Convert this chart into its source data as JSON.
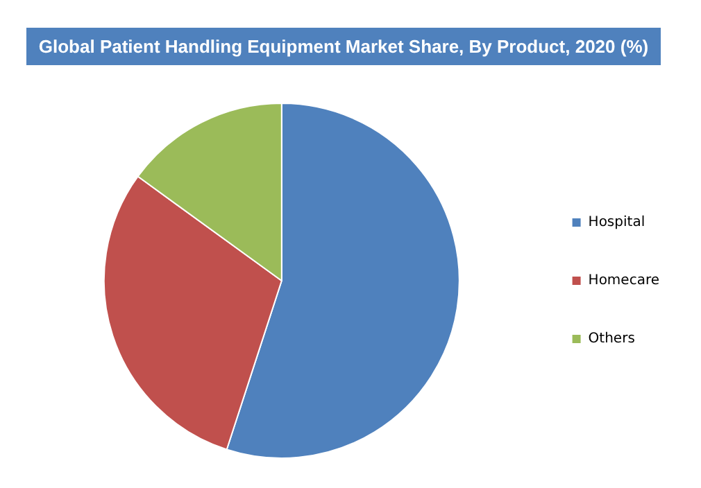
{
  "chart_data": {
    "type": "pie",
    "title": "Global  Patient Handling Equipment Market Share, By Product, 2020 (%)",
    "categories": [
      "Hospital",
      "Homecare",
      "Others"
    ],
    "values": [
      55,
      30,
      15
    ],
    "colors": [
      "#4f81bd",
      "#c0504d",
      "#9bbb59"
    ],
    "legend": "right"
  }
}
